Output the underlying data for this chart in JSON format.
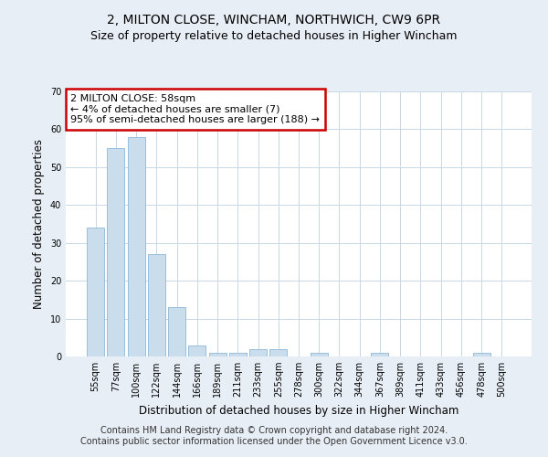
{
  "title_line1": "2, MILTON CLOSE, WINCHAM, NORTHWICH, CW9 6PR",
  "title_line2": "Size of property relative to detached houses in Higher Wincham",
  "xlabel": "Distribution of detached houses by size in Higher Wincham",
  "ylabel": "Number of detached properties",
  "categories": [
    "55sqm",
    "77sqm",
    "100sqm",
    "122sqm",
    "144sqm",
    "166sqm",
    "189sqm",
    "211sqm",
    "233sqm",
    "255sqm",
    "278sqm",
    "300sqm",
    "322sqm",
    "344sqm",
    "367sqm",
    "389sqm",
    "411sqm",
    "433sqm",
    "456sqm",
    "478sqm",
    "500sqm"
  ],
  "values": [
    34,
    55,
    58,
    27,
    13,
    3,
    1,
    1,
    2,
    2,
    0,
    1,
    0,
    0,
    1,
    0,
    0,
    0,
    0,
    1,
    0
  ],
  "bar_color": "#c9dded",
  "bar_edge_color": "#8db8d8",
  "annotation_text": "2 MILTON CLOSE: 58sqm\n← 4% of detached houses are smaller (7)\n95% of semi-detached houses are larger (188) →",
  "annotation_box_color": "white",
  "annotation_box_edge_color": "#cc0000",
  "ylim": [
    0,
    70
  ],
  "yticks": [
    0,
    10,
    20,
    30,
    40,
    50,
    60,
    70
  ],
  "footer_line1": "Contains HM Land Registry data © Crown copyright and database right 2024.",
  "footer_line2": "Contains public sector information licensed under the Open Government Licence v3.0.",
  "background_color": "#e8eef5",
  "plot_bg_color": "#ffffff",
  "grid_color": "#c8d8e8",
  "title_fontsize": 10,
  "subtitle_fontsize": 9,
  "annotation_fontsize": 8,
  "footer_fontsize": 7,
  "tick_fontsize": 7,
  "xlabel_fontsize": 8.5,
  "ylabel_fontsize": 8.5
}
